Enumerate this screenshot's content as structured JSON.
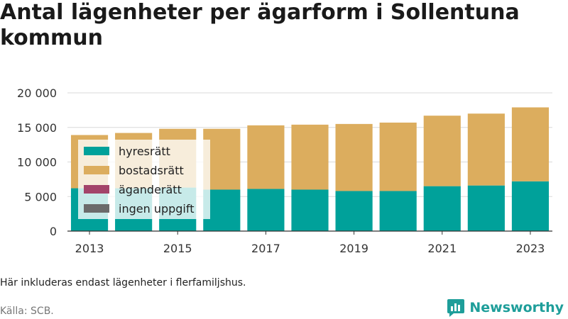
{
  "title": "Antal lägenheter per ägarform i Sollentuna kommun",
  "note": "Här inkluderas endast lägenheter i flerfamiljshus.",
  "source": "Källa: SCB.",
  "brand": {
    "name": "Newsworthy",
    "icon": "newsworthy-logo-icon"
  },
  "colors": {
    "hyresratt": "#00a19a",
    "bostadsratt": "#dcad5e",
    "aganderatt": "#a3446a",
    "ingen_uppgift": "#6b6b6b",
    "grid": "#d9d9d9",
    "axis": "#333333"
  },
  "chart_data": {
    "type": "bar",
    "stacked": true,
    "categories": [
      "2013",
      "2014",
      "2015",
      "2016",
      "2017",
      "2018",
      "2019",
      "2020",
      "2021",
      "2022",
      "2023"
    ],
    "x_tick_labels": [
      "2013",
      "2015",
      "2017",
      "2019",
      "2021",
      "2023"
    ],
    "y_ticks": [
      0,
      5000,
      10000,
      15000,
      20000
    ],
    "y_tick_labels": [
      "0",
      "5 000",
      "10 000",
      "15 000",
      "20 000"
    ],
    "ylim": [
      0,
      20000
    ],
    "grid": true,
    "legend_placement": "inside-left",
    "series": [
      {
        "name": "hyresrätt",
        "values": [
          6200,
          6200,
          6300,
          6000,
          6100,
          6000,
          5800,
          5800,
          6500,
          6600,
          7200
        ]
      },
      {
        "name": "bostadsrätt",
        "values": [
          7700,
          8000,
          8500,
          8800,
          9200,
          9400,
          9700,
          9900,
          10200,
          10400,
          10700
        ]
      },
      {
        "name": "äganderätt",
        "values": [
          0,
          0,
          0,
          0,
          0,
          0,
          0,
          0,
          0,
          0,
          0
        ]
      },
      {
        "name": "ingen uppgift",
        "values": [
          0,
          0,
          0,
          0,
          0,
          0,
          0,
          0,
          0,
          0,
          0
        ]
      }
    ]
  }
}
